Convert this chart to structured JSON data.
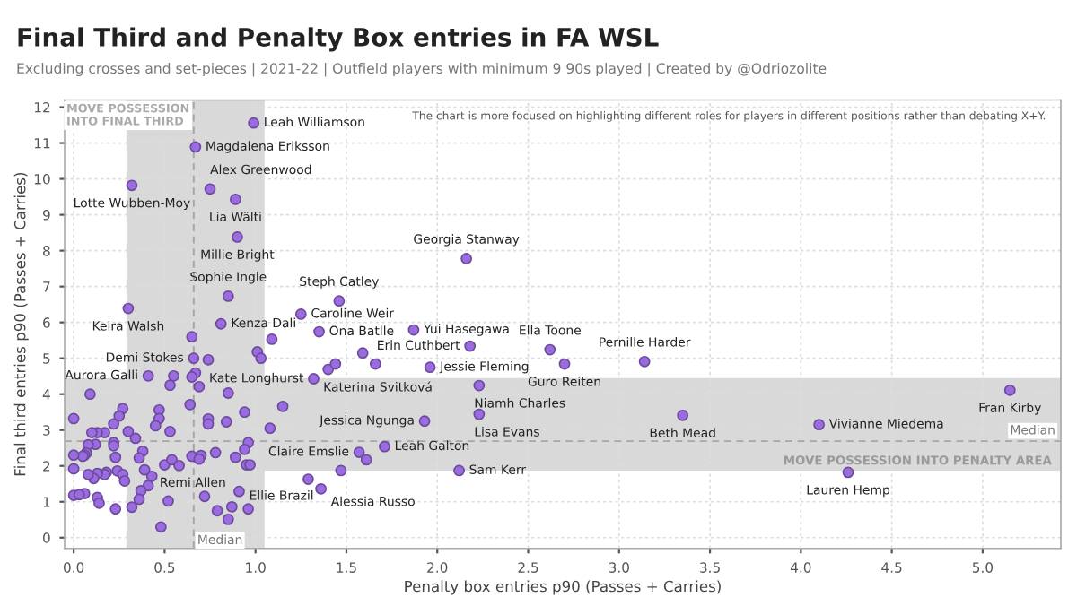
{
  "chart_data": {
    "type": "scatter",
    "title": "Final Third and Penalty Box entries in FA WSL",
    "subtitle": "Excluding crosses and set-pieces | 2021-22 | Outfield players with minimum 9 90s played | Created by @Odriozolite",
    "xlabel": "Penalty box entries p90 (Passes + Carries)",
    "ylabel": "Final third entries p90 (Passes + Carries)",
    "color": "#9b6be0",
    "marker": "circle",
    "grid": true,
    "xlim": [
      -0.05,
      5.43
    ],
    "ylim": [
      -0.3,
      12.2
    ],
    "xticks": [
      {
        "value": 0,
        "label": "0.0"
      },
      {
        "value": 0.5,
        "label": "0.5"
      },
      {
        "value": 1,
        "label": "1.0"
      },
      {
        "value": 1.5,
        "label": "1.5"
      },
      {
        "value": 2,
        "label": "2.0"
      },
      {
        "value": 2.5,
        "label": "2.5"
      },
      {
        "value": 3,
        "label": "3.0"
      },
      {
        "value": 3.5,
        "label": "3.5"
      },
      {
        "value": 4,
        "label": "4.0"
      },
      {
        "value": 4.5,
        "label": "4.5"
      },
      {
        "value": 5,
        "label": "5.0"
      }
    ],
    "yticks": [
      0,
      1,
      2,
      3,
      4,
      5,
      6,
      7,
      8,
      9,
      10,
      11,
      12
    ],
    "bands": [
      {
        "axis": "x",
        "from": 0.29,
        "to": 1.05,
        "label": "MOVE POSSESSION INTO FINAL THIRD",
        "color": "#d9d9d9"
      },
      {
        "axis": "y",
        "from": 1.87,
        "to": 4.45,
        "label": "MOVE POSSESSION INTO PENALTY AREA",
        "color": "#d9d9d9"
      }
    ],
    "ref_lines": [
      {
        "axis": "x",
        "value": 0.66,
        "label": "Median",
        "line_style": "dashed",
        "color": "#a6a6a6"
      },
      {
        "axis": "y",
        "value": 2.69,
        "label": "Median",
        "line_style": "dashed",
        "color": "#a6a6a6"
      }
    ],
    "x": [
      0.99,
      0.67,
      0.75,
      0.32,
      0.89,
      0.9,
      2.16,
      0.85,
      1.46,
      0.3,
      1.25,
      0.81,
      1.35,
      1.87,
      2.18,
      1.96,
      2.62,
      3.14,
      2.7,
      0.66,
      0.41,
      1.32,
      1.4,
      2.23,
      2.23,
      1.93,
      1.71,
      1.57,
      2.12,
      1.36,
      0.5,
      0.91,
      3.35,
      4.1,
      5.15,
      4.26,
      0.65,
      1.09,
      1.59,
      1.66,
      1.44,
      1.01,
      1.03,
      0.74,
      0.67,
      0.65,
      0.69,
      0.55,
      0.53,
      1.29,
      1.61,
      1.47,
      1.15,
      1.08,
      0.96,
      0.94,
      0.95,
      0.97,
      0.94,
      0.89,
      0.85,
      0.84,
      0.74,
      0.74,
      0.78,
      0.7,
      0.65,
      0.69,
      0.72,
      0.79,
      0.87,
      0.85,
      0.96,
      0.64,
      0.52,
      0.48,
      0.54,
      0.58,
      0.53,
      0.47,
      0.47,
      0.45,
      0.43,
      0.41,
      0.39,
      0.37,
      0.36,
      0.38,
      0.36,
      0.34,
      0.3,
      0.32,
      0.27,
      0.25,
      0.22,
      0.22,
      0.22,
      0.23,
      0.24,
      0.27,
      0.28,
      0.23,
      0.18,
      0.17,
      0.17,
      0.13,
      0.1,
      0.12,
      0.13,
      0.11,
      0.13,
      0.14,
      0.09,
      0.08,
      0.07,
      0.06,
      0.05,
      0.08,
      0.06,
      0.0,
      0.0,
      0.0,
      0.0,
      0.03
    ],
    "values": [
      11.56,
      10.89,
      9.72,
      9.82,
      9.43,
      8.38,
      7.78,
      6.73,
      6.6,
      6.39,
      6.23,
      5.96,
      5.74,
      5.79,
      5.34,
      4.75,
      5.24,
      4.91,
      4.84,
      5.0,
      4.51,
      4.43,
      4.69,
      4.24,
      3.44,
      3.25,
      2.54,
      2.38,
      1.87,
      1.36,
      2.03,
      1.29,
      3.41,
      3.15,
      4.11,
      1.82,
      5.6,
      5.53,
      5.15,
      4.84,
      4.84,
      5.18,
      5.0,
      4.96,
      4.59,
      4.48,
      4.21,
      4.51,
      4.25,
      1.63,
      2.17,
      1.87,
      3.66,
      3.05,
      2.65,
      2.46,
      2.03,
      2.03,
      3.5,
      2.24,
      4.03,
      3.23,
      3.31,
      3.17,
      2.37,
      2.29,
      2.27,
      2.19,
      1.15,
      0.75,
      0.86,
      0.51,
      0.8,
      3.71,
      1.02,
      0.3,
      2.17,
      2.01,
      2.96,
      3.56,
      3.32,
      3.12,
      1.71,
      1.45,
      1.89,
      1.31,
      1.07,
      2.41,
      2.22,
      2.77,
      2.96,
      0.85,
      3.6,
      3.39,
      3.17,
      2.65,
      2.56,
      2.24,
      1.86,
      1.76,
      1.58,
      0.8,
      1.82,
      1.76,
      2.93,
      2.93,
      2.93,
      2.6,
      1.79,
      1.65,
      1.12,
      0.96,
      4.0,
      2.59,
      2.36,
      2.3,
      2.27,
      1.76,
      1.23,
      3.32,
      2.3,
      1.92,
      1.18,
      1.2
    ],
    "annotations": [
      {
        "text": "Leah Williamson",
        "x": 0.99,
        "y": 11.56
      },
      {
        "text": "Magdalena Eriksson",
        "x": 0.67,
        "y": 10.89
      },
      {
        "text": "Alex Greenwood",
        "x": 0.75,
        "y": 9.72
      },
      {
        "text": "Lotte Wubben-Moy",
        "x": 0.32,
        "y": 9.82
      },
      {
        "text": "Lia Wälti",
        "x": 0.89,
        "y": 9.43
      },
      {
        "text": "Millie Bright",
        "x": 0.9,
        "y": 8.38
      },
      {
        "text": "Georgia Stanway",
        "x": 2.16,
        "y": 7.78
      },
      {
        "text": "Sophie Ingle",
        "x": 0.85,
        "y": 6.73
      },
      {
        "text": "Steph Catley",
        "x": 1.46,
        "y": 6.6
      },
      {
        "text": "Keira Walsh",
        "x": 0.3,
        "y": 6.39
      },
      {
        "text": "Caroline Weir",
        "x": 1.25,
        "y": 6.23
      },
      {
        "text": "Kenza Dali",
        "x": 0.81,
        "y": 5.96
      },
      {
        "text": "Ona Batlle",
        "x": 1.35,
        "y": 5.74
      },
      {
        "text": "Yui Hasegawa",
        "x": 1.87,
        "y": 5.79
      },
      {
        "text": "Erin Cuthbert",
        "x": 2.18,
        "y": 5.34
      },
      {
        "text": "Jessie Fleming",
        "x": 1.96,
        "y": 4.75
      },
      {
        "text": "Ella Toone",
        "x": 2.62,
        "y": 5.24
      },
      {
        "text": "Pernille Harder",
        "x": 3.14,
        "y": 4.91
      },
      {
        "text": "Guro Reiten",
        "x": 2.7,
        "y": 4.84
      },
      {
        "text": "Demi Stokes",
        "x": 0.66,
        "y": 5.0
      },
      {
        "text": "Aurora Galli",
        "x": 0.41,
        "y": 4.51
      },
      {
        "text": "Kate Longhurst",
        "x": 1.32,
        "y": 4.43
      },
      {
        "text": "Katerina Svitková",
        "x": 1.4,
        "y": 4.69
      },
      {
        "text": "Niamh Charles",
        "x": 2.23,
        "y": 4.24
      },
      {
        "text": "Lisa Evans",
        "x": 2.23,
        "y": 3.44
      },
      {
        "text": "Jessica Ngunga",
        "x": 1.93,
        "y": 3.25
      },
      {
        "text": "Leah Galton",
        "x": 1.71,
        "y": 2.54
      },
      {
        "text": "Claire Emslie",
        "x": 1.57,
        "y": 2.38
      },
      {
        "text": "Sam Kerr",
        "x": 2.12,
        "y": 1.87
      },
      {
        "text": "Alessia Russo",
        "x": 1.36,
        "y": 1.36
      },
      {
        "text": "Remi Allen",
        "x": 0.5,
        "y": 2.03
      },
      {
        "text": "Ellie Brazil",
        "x": 0.91,
        "y": 1.29
      },
      {
        "text": "Beth Mead",
        "x": 3.35,
        "y": 3.41
      },
      {
        "text": "Vivianne Miedema",
        "x": 4.1,
        "y": 3.15
      },
      {
        "text": "Fran Kirby",
        "x": 5.15,
        "y": 4.11
      },
      {
        "text": "Lauren Hemp",
        "x": 4.26,
        "y": 1.82
      },
      "The chart is more focused on highlighting different roles for players in different positions rather than debating X+Y."
    ]
  }
}
